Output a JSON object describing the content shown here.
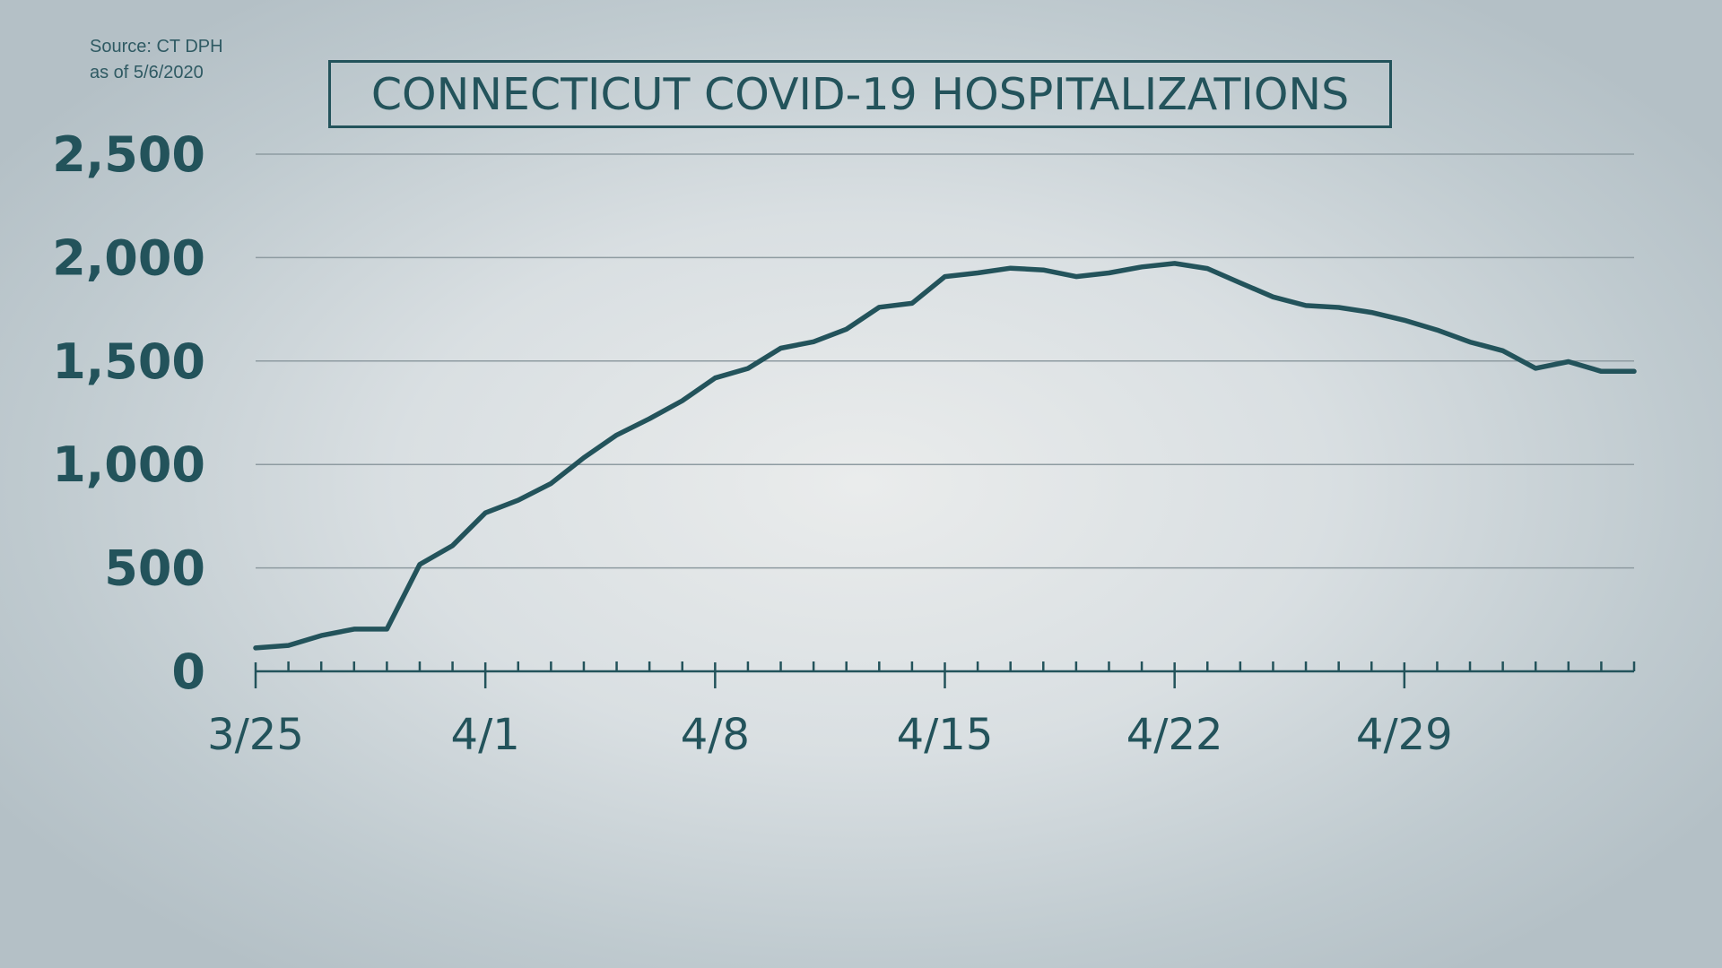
{
  "source": {
    "line1": "Source: CT DPH",
    "line2": "as of 5/6/2020"
  },
  "colors": {
    "ink": "#23535b",
    "grid": "#8e9ba1"
  },
  "chart_data": {
    "type": "line",
    "title": "CONNECTICUT COVID-19 HOSPITALIZATIONS",
    "xlabel": "",
    "ylabel": "",
    "ylim": [
      0,
      2500
    ],
    "yticks": [
      0,
      500,
      1000,
      1500,
      2000,
      2500
    ],
    "ytick_labels": [
      "0",
      "500",
      "1,000",
      "1,500",
      "2,000",
      "2,500"
    ],
    "xticks": [
      "3/25",
      "3/26",
      "3/27",
      "3/28",
      "3/29",
      "3/30",
      "3/31",
      "4/1",
      "4/2",
      "4/3",
      "4/4",
      "4/5",
      "4/6",
      "4/7",
      "4/8",
      "4/9",
      "4/10",
      "4/11",
      "4/12",
      "4/13",
      "4/14",
      "4/15",
      "4/16",
      "4/17",
      "4/18",
      "4/19",
      "4/20",
      "4/21",
      "4/22",
      "4/23",
      "4/24",
      "4/25",
      "4/26",
      "4/27",
      "4/28",
      "4/29",
      "4/30",
      "5/1",
      "5/2",
      "5/3",
      "5/4",
      "5/5",
      "5/6"
    ],
    "xtick_labels": [
      "3/25",
      "4/1",
      "4/8",
      "4/15",
      "4/22",
      "4/29"
    ],
    "grid": true,
    "legend": "none",
    "series": [
      {
        "x": [
          "3/25",
          "3/26",
          "3/27",
          "3/28",
          "3/29",
          "3/30",
          "3/31",
          "4/1",
          "4/2",
          "4/3",
          "4/4",
          "4/5",
          "4/6",
          "4/7",
          "4/8",
          "4/9",
          "4/10",
          "4/11",
          "4/12",
          "4/13",
          "4/14",
          "4/15",
          "4/16",
          "4/17",
          "4/18",
          "4/19",
          "4/20",
          "4/21",
          "4/22",
          "4/23",
          "4/24",
          "4/25",
          "4/26",
          "4/27",
          "4/28",
          "4/29",
          "4/30",
          "5/1",
          "5/2",
          "5/3",
          "5/4",
          "5/5",
          "5/6"
        ],
        "values": [
          113,
          125,
          173,
          204,
          204,
          517,
          608,
          766,
          827,
          908,
          1033,
          1142,
          1221,
          1308,
          1418,
          1464,
          1562,
          1593,
          1654,
          1760,
          1779,
          1908,
          1926,
          1949,
          1940,
          1908,
          1926,
          1955,
          1972,
          1947,
          1878,
          1810,
          1768,
          1759,
          1735,
          1697,
          1650,
          1592,
          1550,
          1465,
          1497,
          1450,
          1450
        ]
      }
    ]
  }
}
